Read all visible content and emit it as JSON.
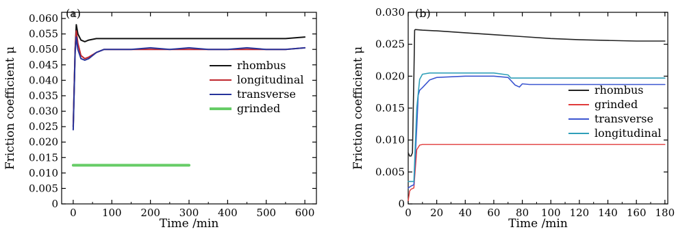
{
  "chart_data": [
    {
      "type": "line",
      "panel_label": "(a)",
      "xlabel": "Time /min",
      "ylabel": "Friction coefficient μ",
      "xlim": [
        -30,
        630
      ],
      "ylim": [
        0,
        0.062
      ],
      "xticks": [
        0,
        100,
        200,
        300,
        400,
        500,
        600
      ],
      "xtick_labels": [
        "0",
        "100",
        "200",
        "300",
        "400",
        "500",
        "600"
      ],
      "yticks": [
        0,
        0.005,
        0.01,
        0.015,
        0.02,
        0.025,
        0.03,
        0.035,
        0.04,
        0.045,
        0.05,
        0.055,
        0.06
      ],
      "ytick_labels": [
        "0",
        "0.005",
        "0.010",
        "0.015",
        "0.020",
        "0.025",
        "0.030",
        "0.035",
        "0.040",
        "0.045",
        "0.050",
        "0.055",
        "0.060"
      ],
      "legend_position": "center-right",
      "series": [
        {
          "name": "rhombus",
          "color": "#111111",
          "width": 2,
          "x": [
            0,
            5,
            8,
            12,
            20,
            30,
            40,
            60,
            80,
            100,
            150,
            200,
            250,
            300,
            350,
            400,
            450,
            500,
            550,
            600
          ],
          "y": [
            0.025,
            0.05,
            0.058,
            0.055,
            0.053,
            0.0525,
            0.053,
            0.0535,
            0.0535,
            0.0535,
            0.0535,
            0.0535,
            0.0535,
            0.0535,
            0.0535,
            0.0535,
            0.0535,
            0.0535,
            0.0535,
            0.054
          ]
        },
        {
          "name": "longitudinal",
          "color": "#c0262d",
          "width": 2,
          "x": [
            0,
            5,
            8,
            12,
            20,
            30,
            40,
            60,
            80,
            100,
            150,
            200,
            250,
            300,
            350,
            400,
            450,
            500,
            550,
            600
          ],
          "y": [
            0.025,
            0.05,
            0.056,
            0.052,
            0.048,
            0.047,
            0.0475,
            0.049,
            0.05,
            0.05,
            0.05,
            0.05,
            0.05,
            0.05,
            0.05,
            0.05,
            0.05,
            0.05,
            0.05,
            0.0505
          ]
        },
        {
          "name": "transverse",
          "color": "#26339b",
          "width": 2,
          "x": [
            0,
            5,
            8,
            12,
            20,
            30,
            40,
            60,
            80,
            100,
            150,
            200,
            250,
            300,
            350,
            400,
            450,
            500,
            550,
            600
          ],
          "y": [
            0.024,
            0.049,
            0.054,
            0.05,
            0.047,
            0.0465,
            0.047,
            0.049,
            0.05,
            0.05,
            0.05,
            0.0505,
            0.05,
            0.0505,
            0.05,
            0.05,
            0.0505,
            0.05,
            0.05,
            0.0505
          ]
        },
        {
          "name": "grinded",
          "color": "#66cc66",
          "width": 4,
          "x": [
            0,
            300
          ],
          "y": [
            0.0125,
            0.0125
          ]
        }
      ]
    },
    {
      "type": "line",
      "panel_label": "(b)",
      "xlabel": "Time /min",
      "ylabel": "Friction coefficient μ",
      "xlim": [
        0,
        182
      ],
      "ylim": [
        0,
        0.03
      ],
      "xticks": [
        0,
        20,
        40,
        60,
        80,
        100,
        120,
        140,
        160,
        180
      ],
      "xtick_labels": [
        "0",
        "20",
        "40",
        "60",
        "80",
        "100",
        "120",
        "140",
        "160",
        "180"
      ],
      "yticks": [
        0,
        0.005,
        0.01,
        0.015,
        0.02,
        0.025,
        0.03
      ],
      "ytick_labels": [
        "0",
        "0.005",
        "0.010",
        "0.015",
        "0.020",
        "0.025",
        "0.030"
      ],
      "legend_position": "center-right",
      "series": [
        {
          "name": "rhombus",
          "color": "#222222",
          "width": 1.6,
          "x": [
            0,
            1,
            2,
            3,
            4,
            4.5,
            5,
            10,
            20,
            40,
            60,
            80,
            100,
            120,
            140,
            160,
            180
          ],
          "y": [
            0.008,
            0.0075,
            0.0075,
            0.008,
            0.02,
            0.0272,
            0.0273,
            0.0272,
            0.0271,
            0.0268,
            0.0265,
            0.0262,
            0.0259,
            0.0257,
            0.0256,
            0.0255,
            0.0255
          ]
        },
        {
          "name": "grinded",
          "color": "#e03a3a",
          "width": 1.4,
          "x": [
            0,
            1,
            2,
            4,
            6,
            8,
            10,
            20,
            40,
            60,
            80,
            100,
            120,
            140,
            160,
            180
          ],
          "y": [
            0.0005,
            0.002,
            0.0023,
            0.0025,
            0.0085,
            0.0092,
            0.0093,
            0.0093,
            0.0093,
            0.0093,
            0.0093,
            0.0093,
            0.0093,
            0.0093,
            0.0093,
            0.0093
          ]
        },
        {
          "name": "transverse",
          "color": "#3b55d0",
          "width": 1.6,
          "x": [
            0,
            2,
            4,
            6,
            7,
            8,
            10,
            15,
            20,
            40,
            60,
            70,
            75,
            78,
            80,
            85,
            100,
            120,
            140,
            160,
            180
          ],
          "y": [
            0.0025,
            0.0028,
            0.003,
            0.012,
            0.017,
            0.0178,
            0.0182,
            0.0194,
            0.0198,
            0.02,
            0.02,
            0.0198,
            0.0186,
            0.0183,
            0.0188,
            0.0187,
            0.0187,
            0.0187,
            0.0187,
            0.0187,
            0.0187
          ]
        },
        {
          "name": "longitudinal",
          "color": "#2e9fb8",
          "width": 1.6,
          "x": [
            0,
            2,
            4,
            6,
            8,
            10,
            15,
            20,
            40,
            60,
            70,
            72,
            80,
            100,
            120,
            140,
            160,
            180
          ],
          "y": [
            0.0035,
            0.0035,
            0.0035,
            0.015,
            0.0195,
            0.0203,
            0.0205,
            0.0205,
            0.0205,
            0.0205,
            0.0202,
            0.0197,
            0.0197,
            0.0197,
            0.0197,
            0.0197,
            0.0197,
            0.0197
          ]
        }
      ]
    }
  ]
}
